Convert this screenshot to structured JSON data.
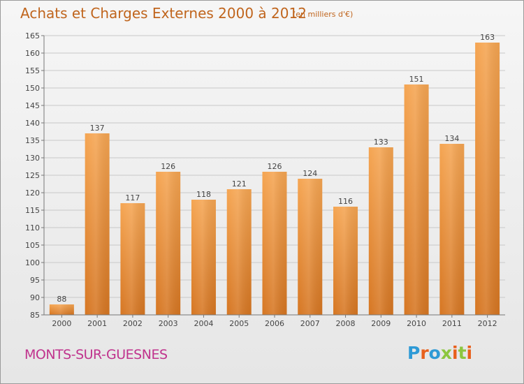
{
  "header": {
    "title": "Achats et Charges Externes 2000 à 2012",
    "unit": "(en milliers d'€)"
  },
  "footer": {
    "commune": "MONTS-SUR-GUESNES",
    "logo_text": "Proxiti",
    "logo_letters": [
      {
        "ch": "P",
        "color": "#2e9ad6"
      },
      {
        "ch": "r",
        "color": "#e8601c"
      },
      {
        "ch": "o",
        "color": "#2e9ad6"
      },
      {
        "ch": "x",
        "color": "#8dc63f"
      },
      {
        "ch": "i",
        "color": "#e8601c"
      },
      {
        "ch": "t",
        "color": "#8dc63f"
      },
      {
        "ch": "i",
        "color": "#e8601c"
      }
    ]
  },
  "chart_data": {
    "type": "bar",
    "title": "Achats et Charges Externes 2000 à 2012",
    "subtitle": "(en milliers d'€)",
    "categories": [
      "2000",
      "2001",
      "2002",
      "2003",
      "2004",
      "2005",
      "2006",
      "2007",
      "2008",
      "2009",
      "2010",
      "2011",
      "2012"
    ],
    "values": [
      88,
      137,
      117,
      126,
      118,
      121,
      126,
      124,
      116,
      133,
      151,
      134,
      163
    ],
    "data_labels": [
      "88",
      "137",
      "117",
      "126",
      "118",
      "121",
      "126",
      "124",
      "116",
      "133",
      "151",
      "134",
      "163"
    ],
    "ylim": [
      85,
      165
    ],
    "yticks": [
      "85",
      "90",
      "95",
      "100",
      "105",
      "110",
      "115",
      "120",
      "125",
      "130",
      "135",
      "140",
      "145",
      "150",
      "155",
      "160",
      "165"
    ],
    "ytick_values": [
      85,
      90,
      95,
      100,
      105,
      110,
      115,
      120,
      125,
      130,
      135,
      140,
      145,
      150,
      155,
      160,
      165
    ],
    "grid": true,
    "bar_color_top": "#f5a552",
    "bar_color_bottom": "#d67622",
    "label_color": "#444444"
  }
}
